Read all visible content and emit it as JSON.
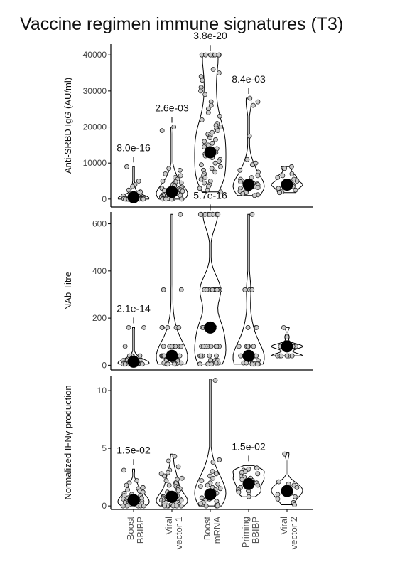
{
  "chart_data": {
    "type": "violin",
    "title": "Vaccine regimen immune signatures (T3)",
    "categories": [
      "Boost\nBBIBP",
      "Viral\nvector 1",
      "Boost\nmRNA",
      "Priming\nBBIBP",
      "Viral\nvector 2"
    ],
    "panels": [
      {
        "ylabel": "Anti-SRBD  IgG (AU/ml)",
        "ylim": [
          -2200,
          43000
        ],
        "yticks": [
          0,
          10000,
          20000,
          30000,
          40000
        ],
        "groups": [
          {
            "category": "Boost\nBBIBP",
            "summary": 500,
            "max": 9000,
            "pvalue": "8.0e-16",
            "points": [
              9000,
              5000,
              4000,
              3500,
              2500,
              2000,
              1800,
              1500,
              1200,
              1000,
              900,
              800,
              700,
              600,
              500,
              400,
              300,
              300,
              200,
              200,
              150,
              100,
              100,
              50,
              50,
              0,
              0,
              0,
              0,
              0,
              0,
              0,
              0,
              0,
              0,
              0,
              0,
              0,
              0,
              0
            ]
          },
          {
            "category": "Viral\nvector 1",
            "summary": 2000,
            "max": 20000,
            "pvalue": "2.6e-03",
            "points": [
              20000,
              19000,
              8500,
              8000,
              7000,
              6500,
              6000,
              5500,
              5000,
              4800,
              4500,
              4200,
              4000,
              3800,
              3600,
              3400,
              3200,
              3000,
              2800,
              2600,
              2500,
              2400,
              2200,
              2000,
              1900,
              1800,
              1600,
              1500,
              1400,
              1300,
              1200,
              1100,
              1000,
              900,
              800,
              700,
              600,
              500,
              400,
              300,
              200,
              100,
              50,
              0,
              0,
              0,
              0,
              0
            ]
          },
          {
            "category": "Boost\nmRNA",
            "summary": 13000,
            "max": 40000,
            "pvalue": "3.8e-20",
            "points": [
              40000,
              40000,
              40000,
              40000,
              40000,
              40000,
              40000,
              36000,
              35000,
              34000,
              33000,
              31000,
              30000,
              29000,
              27000,
              26000,
              25000,
              24000,
              23000,
              22000,
              21000,
              20500,
              20000,
              19500,
              19000,
              18500,
              18000,
              17500,
              17000,
              16500,
              16000,
              15500,
              15000,
              14500,
              14000,
              13500,
              13000,
              12500,
              12000,
              11500,
              11000,
              10500,
              10000,
              9500,
              9000,
              8500,
              8000,
              7500,
              7000,
              6500,
              6000,
              5500,
              5000,
              4500,
              4000,
              3500,
              3000,
              2500,
              2000
            ]
          },
          {
            "category": "Priming\nBBIBP",
            "summary": 4000,
            "max": 28000,
            "pvalue": "8.4e-03",
            "points": [
              28000,
              27000,
              26000,
              17500,
              11000,
              10000,
              9500,
              8000,
              7500,
              6500,
              6000,
              5500,
              5000,
              4800,
              4500,
              4200,
              4000,
              3800,
              3500,
              3200,
              3000,
              2800,
              2500,
              2200,
              2000,
              1800,
              1500,
              1200,
              1000
            ]
          },
          {
            "category": "Viral\nvector 2",
            "summary": 4000,
            "max": 9000,
            "pvalue": "",
            "points": [
              9000,
              8500,
              7000,
              6500,
              6000,
              5500,
              5000,
              4500,
              4200,
              4000,
              3800,
              3500,
              3000,
              2500,
              2000,
              1800
            ]
          }
        ]
      },
      {
        "ylabel": "NAb Titre",
        "ylim": [
          -20,
          650
        ],
        "yticks": [
          0,
          200,
          400,
          600
        ],
        "groups": [
          {
            "category": "Boost\nBBIBP",
            "summary": 15,
            "max": 160,
            "pvalue": "2.1e-14",
            "points": [
              160,
              160,
              80,
              40,
              40,
              40,
              40,
              20,
              20,
              20,
              20,
              20,
              20,
              20,
              20,
              10,
              10,
              10,
              10,
              10,
              10,
              10,
              10,
              5,
              5,
              5,
              5,
              5,
              5,
              5,
              5,
              5,
              5,
              5,
              5,
              5,
              5,
              5,
              5
            ]
          },
          {
            "category": "Viral\nvector 1",
            "summary": 40,
            "max": 640,
            "pvalue": "",
            "points": [
              640,
              320,
              320,
              160,
              160,
              160,
              160,
              160,
              80,
              80,
              80,
              80,
              80,
              80,
              80,
              80,
              80,
              40,
              40,
              40,
              40,
              40,
              40,
              40,
              40,
              40,
              40,
              40,
              20,
              20,
              20,
              20,
              20,
              20,
              20,
              20,
              10,
              10,
              10,
              10,
              10,
              10,
              5,
              5,
              5,
              5,
              5
            ]
          },
          {
            "category": "Boost\nmRNA",
            "summary": 160,
            "max": 640,
            "pvalue": "5.7e-16",
            "points": [
              640,
              640,
              640,
              640,
              640,
              640,
              640,
              640,
              640,
              640,
              320,
              320,
              320,
              320,
              320,
              320,
              320,
              320,
              320,
              320,
              320,
              320,
              320,
              320,
              160,
              160,
              160,
              160,
              160,
              160,
              160,
              160,
              160,
              160,
              160,
              160,
              160,
              80,
              80,
              80,
              80,
              80,
              80,
              80,
              80,
              40,
              40,
              40,
              40,
              40,
              20,
              20,
              20,
              20,
              10,
              10,
              5,
              5,
              5
            ]
          },
          {
            "category": "Priming\nBBIBP",
            "summary": 40,
            "max": 640,
            "pvalue": "",
            "points": [
              640,
              320,
              320,
              320,
              160,
              160,
              160,
              160,
              80,
              80,
              80,
              80,
              80,
              40,
              40,
              40,
              40,
              40,
              40,
              20,
              20,
              20,
              20,
              10,
              10,
              10,
              10,
              5,
              5,
              5,
              5,
              5
            ]
          },
          {
            "category": "Viral\nvector 2",
            "summary": 80,
            "max": 160,
            "pvalue": "",
            "points": [
              160,
              120,
              80,
              80,
              80,
              80,
              80,
              80,
              80,
              40,
              40,
              40,
              40,
              40,
              40,
              40
            ]
          }
        ]
      },
      {
        "ylabel": "Normalized IFNγ production",
        "ylim": [
          -0.3,
          11.3
        ],
        "yticks": [
          0,
          5,
          10
        ],
        "groups": [
          {
            "category": "Boost\nBBIBP",
            "summary": 0.5,
            "max": 3.2,
            "pvalue": "1.5e-02",
            "points": [
              3.1,
              2.2,
              2.0,
              1.8,
              1.6,
              1.5,
              1.4,
              1.3,
              1.2,
              1.1,
              1.0,
              0.9,
              0.9,
              0.8,
              0.8,
              0.7,
              0.7,
              0.6,
              0.6,
              0.5,
              0.5,
              0.4,
              0.4,
              0.3,
              0.3,
              0.2,
              0.2,
              0.1,
              0.1,
              0.0,
              0.0,
              0.0,
              0.0,
              0.0
            ]
          },
          {
            "category": "Viral\nvector 1",
            "summary": 0.8,
            "max": 4.5,
            "pvalue": "",
            "points": [
              4.3,
              3.9,
              3.4,
              3.1,
              2.9,
              2.8,
              2.6,
              2.4,
              2.3,
              2.2,
              2.0,
              1.9,
              1.8,
              1.7,
              1.6,
              1.5,
              1.4,
              1.3,
              1.2,
              1.1,
              1.0,
              1.0,
              0.9,
              0.9,
              0.8,
              0.8,
              0.7,
              0.7,
              0.6,
              0.6,
              0.5,
              0.5,
              0.4,
              0.4,
              0.3,
              0.3,
              0.2,
              0.2,
              0.1,
              0.1,
              0.0,
              0.0,
              0.0,
              0.0,
              0.0,
              0.0
            ]
          },
          {
            "category": "Boost\nmRNA",
            "summary": 1.0,
            "max": 11.0,
            "pvalue": "",
            "points": [
              10.9,
              4.0,
              3.8,
              3.0,
              2.8,
              2.6,
              2.4,
              2.2,
              2.0,
              1.9,
              1.8,
              1.7,
              1.6,
              1.5,
              1.4,
              1.3,
              1.2,
              1.1,
              1.0,
              0.9,
              0.8,
              0.7,
              0.6,
              0.5,
              0.4,
              0.3,
              0.2,
              0.1,
              0.0,
              0.0,
              0.0
            ]
          },
          {
            "category": "Priming\nBBIBP",
            "summary": 1.9,
            "max": 3.5,
            "pvalue": "1.5e-02",
            "points": [
              3.3,
              3.2,
              3.1,
              3.0,
              2.9,
              2.8,
              2.6,
              2.5,
              2.4,
              2.3,
              2.2,
              2.0,
              1.9,
              1.8,
              1.6,
              1.4,
              1.3,
              1.2,
              1.0,
              0.8
            ]
          },
          {
            "category": "Viral\nvector 2",
            "summary": 1.3,
            "max": 4.6,
            "pvalue": "",
            "points": [
              4.5,
              2.1,
              1.9,
              1.8,
              1.6,
              1.5,
              1.4,
              1.3,
              1.2,
              1.1,
              1.0,
              0.8,
              0.6,
              0.3,
              0.1
            ]
          }
        ]
      }
    ]
  }
}
